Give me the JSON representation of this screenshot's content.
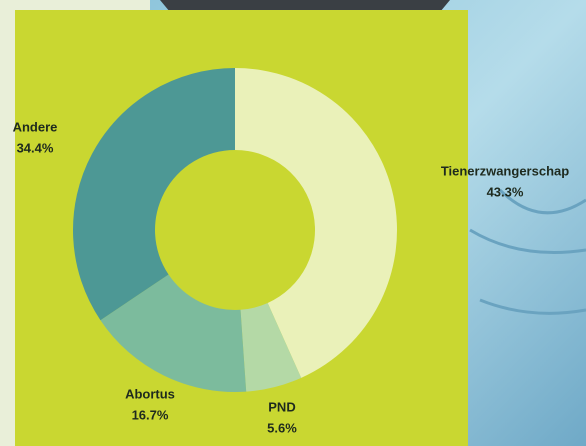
{
  "chart_data": {
    "type": "pie",
    "categories": [
      "Tienerzwangerschap",
      "PND",
      "Abortus",
      "Andere"
    ],
    "values": [
      43.3,
      5.6,
      16.7,
      34.4
    ],
    "value_labels": [
      "43.3%",
      "5.6%",
      "16.7%",
      "34.4%"
    ],
    "colors": [
      "#eaf1b9",
      "#b4d9a6",
      "#7cbb9d",
      "#4d9895"
    ]
  }
}
